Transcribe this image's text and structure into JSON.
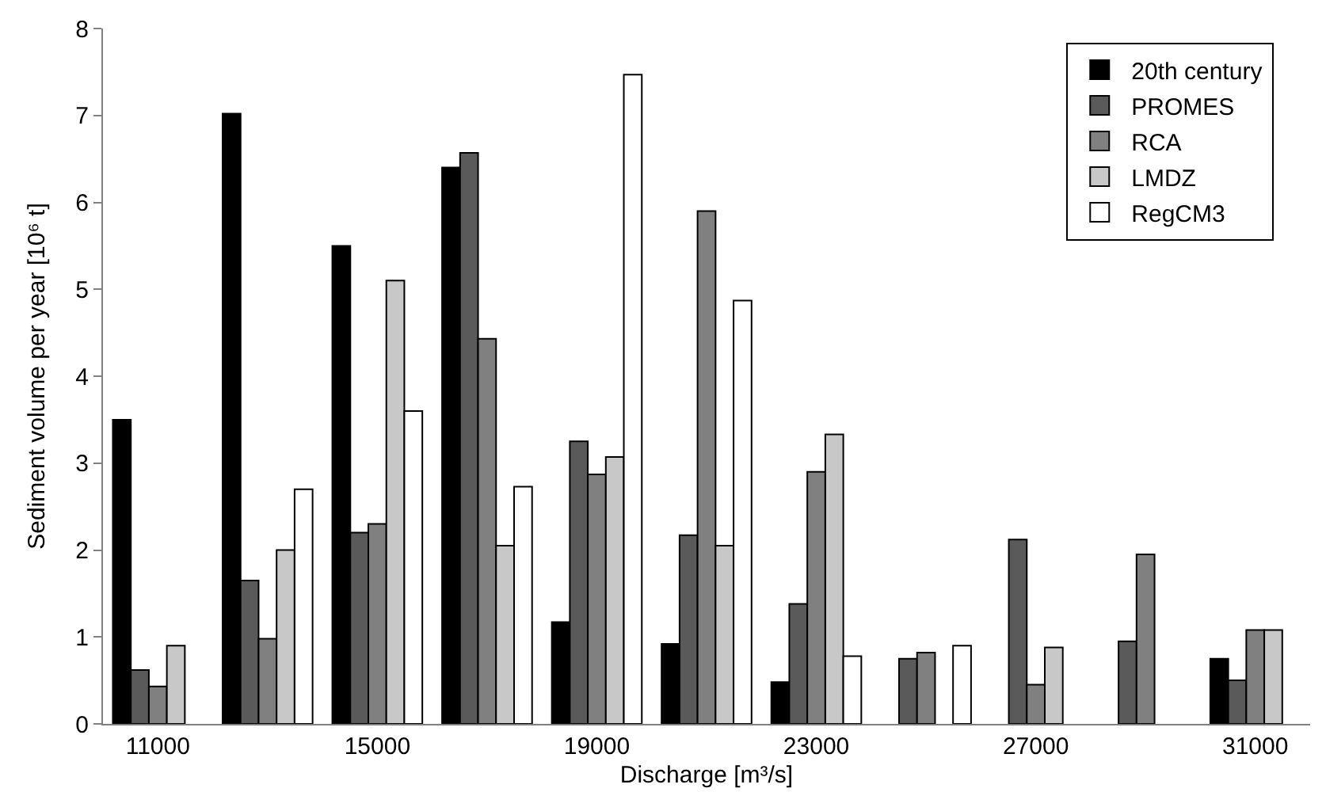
{
  "chart_data": {
    "type": "bar",
    "xlabel": "Discharge [m³/s]",
    "ylabel": "Sediment volume per year [10⁶ t]",
    "categories": [
      "11000",
      null,
      "15000",
      null,
      "19000",
      null,
      "23000",
      null,
      "27000",
      null,
      "31000"
    ],
    "series": [
      {
        "name": "20th century",
        "color": "#000000",
        "values": [
          3.5,
          7.02,
          5.5,
          6.4,
          1.17,
          0.92,
          0.48,
          null,
          null,
          null,
          0.75
        ]
      },
      {
        "name": "PROMES",
        "color": "#5a5a5a",
        "values": [
          0.62,
          1.65,
          2.2,
          6.57,
          3.25,
          2.17,
          1.38,
          0.75,
          2.12,
          0.95,
          0.5
        ]
      },
      {
        "name": "RCA",
        "color": "#808080",
        "values": [
          0.43,
          0.98,
          2.3,
          4.43,
          2.87,
          5.9,
          2.9,
          0.82,
          0.45,
          1.95,
          1.08
        ]
      },
      {
        "name": "LMDZ",
        "color": "#c8c8c8",
        "values": [
          0.9,
          2.0,
          5.1,
          2.05,
          3.07,
          2.05,
          3.33,
          null,
          0.88,
          null,
          1.08
        ]
      },
      {
        "name": "RegCM3",
        "color": "#ffffff",
        "values": [
          null,
          2.7,
          3.6,
          2.73,
          7.47,
          4.87,
          0.78,
          0.9,
          null,
          null,
          null
        ]
      }
    ],
    "ylim": [
      0,
      8
    ],
    "yticks": [
      0,
      1,
      2,
      3,
      4,
      5,
      6,
      7,
      8
    ],
    "legend": "top right"
  }
}
